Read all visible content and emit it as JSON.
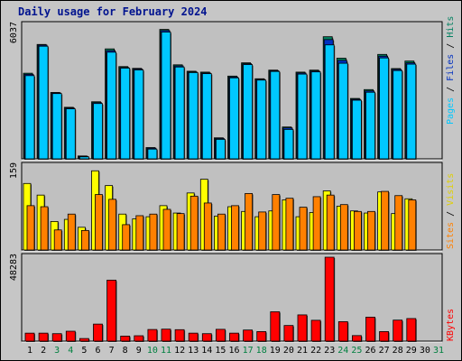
{
  "title": "Daily usage for February 2024",
  "colors": {
    "hits": "#008060",
    "files": "#0030c0",
    "pages": "#00c8ff",
    "visits": "#ffff00",
    "sites": "#ff8000",
    "kbytes": "#ff0000",
    "weekend_day_label": "#008040",
    "panel_bg": "#c0c0c0"
  },
  "chart_data": [
    {
      "type": "bar",
      "panel": "hits-files-pages",
      "ymax_label": "6037",
      "legend": {
        "pages": "Pages",
        "files": "Files",
        "hits": "Hits",
        "sep": " / "
      },
      "categories": [
        "1",
        "2",
        "3",
        "4",
        "5",
        "6",
        "7",
        "8",
        "9",
        "10",
        "11",
        "12",
        "13",
        "14",
        "15",
        "16",
        "17",
        "18",
        "19",
        "20",
        "21",
        "22",
        "23",
        "24",
        "25",
        "26",
        "27",
        "28",
        "29",
        "30",
        "31"
      ],
      "weekend_days": [
        "3",
        "4",
        "10",
        "11",
        "17",
        "18",
        "24",
        "25",
        "31"
      ],
      "ylim": [
        0,
        6037
      ],
      "series": [
        {
          "name": "Hits",
          "values": [
            3870,
            5170,
            3000,
            2330,
            130,
            2580,
            4970,
            4170,
            4090,
            510,
            5850,
            4250,
            3960,
            3920,
            950,
            3740,
            4340,
            3620,
            4010,
            1440,
            3920,
            4010,
            5520,
            4550,
            2730,
            3130,
            4720,
            4080,
            4420,
            0,
            0
          ]
        },
        {
          "name": "Files",
          "values": [
            3820,
            5140,
            2980,
            2300,
            110,
            2540,
            4890,
            4130,
            4060,
            480,
            5800,
            4200,
            3930,
            3880,
            920,
            3700,
            4300,
            3590,
            3980,
            1400,
            3880,
            3970,
            5390,
            4450,
            2690,
            3070,
            4640,
            4040,
            4340,
            0,
            0
          ]
        },
        {
          "name": "Pages",
          "values": [
            3760,
            5090,
            2950,
            2260,
            90,
            2500,
            4820,
            4100,
            4020,
            440,
            5730,
            4150,
            3900,
            3850,
            880,
            3660,
            4260,
            3560,
            3950,
            1330,
            3830,
            3930,
            5150,
            4320,
            2650,
            3010,
            4560,
            3990,
            4280,
            0,
            0
          ]
        }
      ]
    },
    {
      "type": "bar",
      "panel": "visits-sites",
      "ymax_label": "159",
      "legend": {
        "sites": "Sites",
        "visits": "Visits",
        "sep": " / "
      },
      "ylim": [
        0,
        159
      ],
      "series": [
        {
          "name": "Visits",
          "values": [
            126,
            104,
            54,
            58,
            43,
            150,
            122,
            68,
            59,
            63,
            84,
            70,
            108,
            134,
            64,
            82,
            73,
            63,
            74,
            95,
            63,
            71,
            112,
            83,
            74,
            70,
            110,
            69,
            97,
            0,
            0
          ]
        },
        {
          "name": "Sites",
          "values": [
            84,
            82,
            38,
            68,
            37,
            105,
            96,
            48,
            65,
            68,
            77,
            69,
            102,
            89,
            68,
            84,
            107,
            72,
            105,
            98,
            81,
            101,
            104,
            86,
            73,
            73,
            111,
            103,
            95,
            0,
            0
          ]
        }
      ]
    },
    {
      "type": "bar",
      "panel": "kbytes",
      "ymax_label": "48283",
      "legend": {
        "kbytes": "KBytes"
      },
      "ylim": [
        0,
        48283
      ],
      "series": [
        {
          "name": "KBytes",
          "values": [
            4600,
            4600,
            4300,
            5700,
            1500,
            9800,
            35100,
            2900,
            3100,
            6700,
            6900,
            6600,
            4600,
            4300,
            6800,
            4600,
            6400,
            5500,
            16900,
            9000,
            15100,
            12000,
            48283,
            11200,
            3200,
            13800,
            5500,
            12100,
            13000,
            0,
            0
          ]
        }
      ]
    }
  ]
}
